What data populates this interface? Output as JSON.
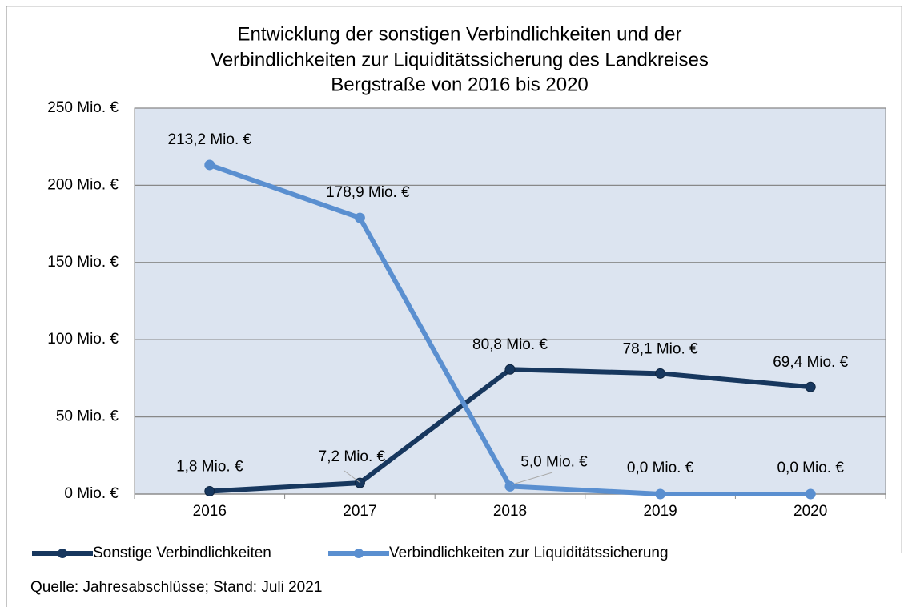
{
  "chart_data": {
    "type": "line",
    "title": [
      "Entwicklung der sonstigen Verbindlichkeiten und der",
      "Verbindlichkeiten zur Liquiditätssicherung des Landkreises",
      "Bergstraße von 2016 bis 2020"
    ],
    "categories": [
      "2016",
      "2017",
      "2018",
      "2019",
      "2020"
    ],
    "series": [
      {
        "name": "Sonstige Verbindlichkeiten",
        "color": "#17375e",
        "values": [
          1.8,
          7.2,
          80.8,
          78.1,
          69.4
        ],
        "value_labels": [
          "1,8 Mio. €",
          "7,2 Mio. €",
          "80,8 Mio. €",
          "78,1 Mio. €",
          "69,4 Mio. €"
        ]
      },
      {
        "name": "Verbindlichkeiten zur Liquiditätssicherung",
        "color": "#5a8fd0",
        "values": [
          213.2,
          178.9,
          5.0,
          0.0,
          0.0
        ],
        "value_labels": [
          "213,2 Mio. €",
          "178,9 Mio. €",
          "5,0 Mio. €",
          "0,0 Mio. €",
          "0,0 Mio. €"
        ]
      }
    ],
    "ylim": [
      0,
      250
    ],
    "yticks": [
      {
        "value": 0,
        "label": "0 Mio. €"
      },
      {
        "value": 50,
        "label": "50 Mio. €"
      },
      {
        "value": 100,
        "label": "100 Mio. €"
      },
      {
        "value": 150,
        "label": "150 Mio. €"
      },
      {
        "value": 200,
        "label": "200 Mio. €"
      },
      {
        "value": 250,
        "label": "250 Mio. €"
      }
    ],
    "grid": true,
    "legend": "bottom",
    "source": "Quelle: Jahresabschlüsse; Stand: Juli 2021"
  }
}
